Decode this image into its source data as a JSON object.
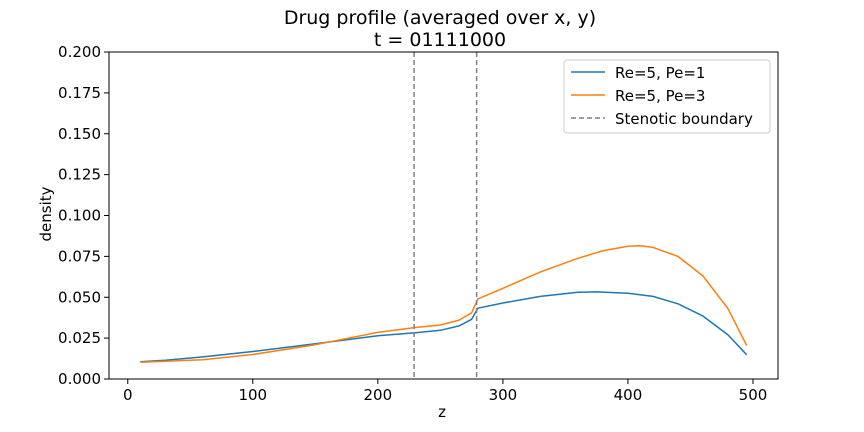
{
  "chart_data": {
    "type": "line",
    "title": "Drug profile (averaged over x, y)",
    "subtitle": "t = 01111000",
    "xlabel": "z",
    "ylabel": "density",
    "xlim": [
      -15,
      520
    ],
    "ylim": [
      0.0,
      0.2
    ],
    "xticks": [
      0,
      100,
      200,
      300,
      400,
      500
    ],
    "yticks": [
      0.0,
      0.025,
      0.05,
      0.075,
      0.1,
      0.125,
      0.15,
      0.175,
      0.2
    ],
    "xtick_labels": [
      "0",
      "100",
      "200",
      "300",
      "400",
      "500"
    ],
    "ytick_labels": [
      "0.000",
      "0.025",
      "0.050",
      "0.075",
      "0.100",
      "0.125",
      "0.150",
      "0.175",
      "0.200"
    ],
    "grid": false,
    "legend_position": "top-right",
    "series": [
      {
        "name": "Re=5, Pe=1",
        "color": "#1f77b4",
        "x": [
          10,
          30,
          60,
          100,
          150,
          200,
          230,
          250,
          265,
          275,
          280,
          300,
          330,
          360,
          375,
          400,
          420,
          440,
          460,
          480,
          495
        ],
        "y": [
          0.0105,
          0.0115,
          0.0135,
          0.0168,
          0.0215,
          0.0265,
          0.0283,
          0.0298,
          0.0325,
          0.0365,
          0.0433,
          0.0465,
          0.0505,
          0.053,
          0.0533,
          0.0525,
          0.0505,
          0.046,
          0.0385,
          0.027,
          0.0148
        ]
      },
      {
        "name": "Re=5, Pe=3",
        "color": "#ff7f0e",
        "x": [
          10,
          30,
          60,
          100,
          150,
          200,
          230,
          250,
          265,
          275,
          280,
          300,
          330,
          360,
          380,
          400,
          410,
          420,
          440,
          460,
          480,
          495
        ],
        "y": [
          0.0103,
          0.0108,
          0.0118,
          0.015,
          0.021,
          0.0285,
          0.0315,
          0.033,
          0.036,
          0.0405,
          0.049,
          0.0555,
          0.0655,
          0.0738,
          0.0785,
          0.0812,
          0.0815,
          0.0805,
          0.075,
          0.063,
          0.043,
          0.0205
        ]
      }
    ],
    "vlines": {
      "name": "Stenotic boundary",
      "color": "#808080",
      "x": [
        229,
        279
      ]
    }
  }
}
